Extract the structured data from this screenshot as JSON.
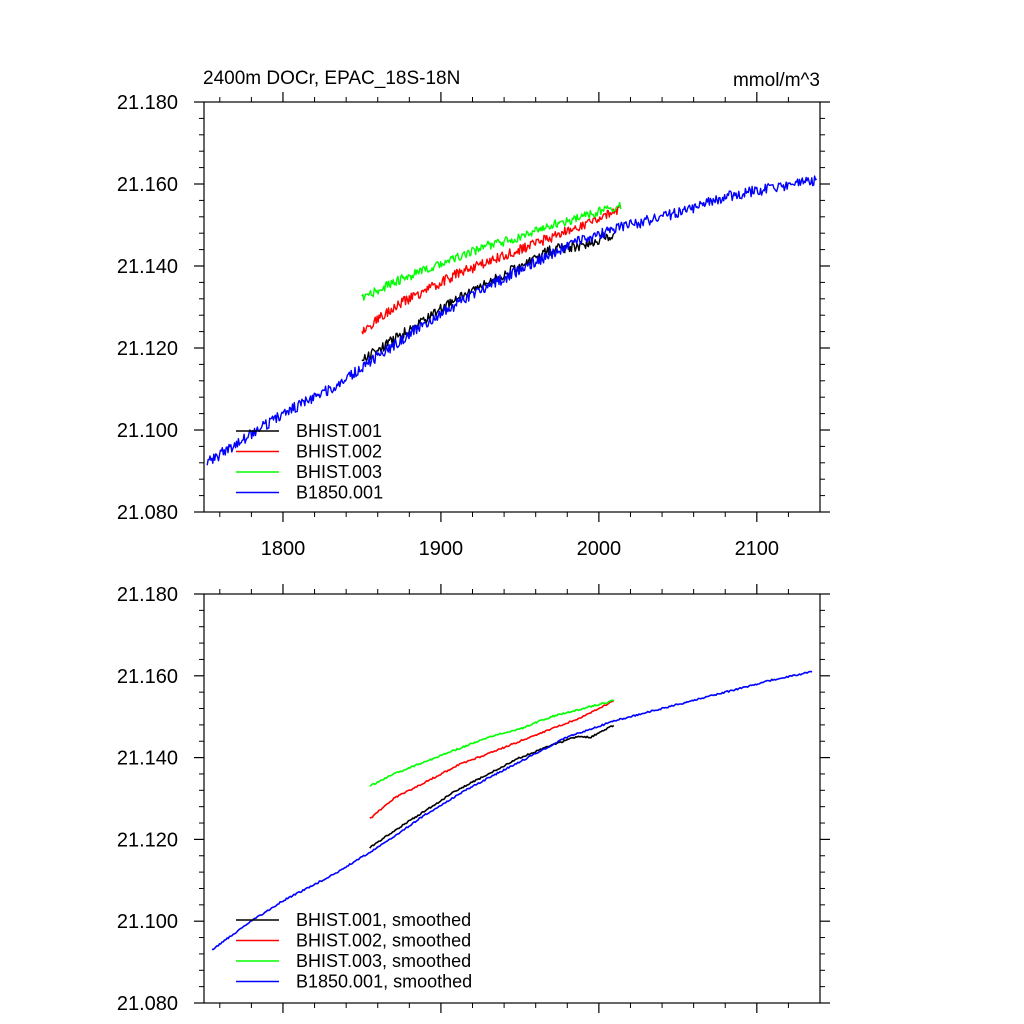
{
  "chart_data": [
    {
      "type": "line",
      "title": "2400m DOCr, EPAC_18S-18N",
      "units": "mmol/m^3",
      "xlim": [
        1750,
        2140
      ],
      "ylim": [
        21.08,
        21.18
      ],
      "xticks": [
        1800,
        1900,
        2000,
        2100
      ],
      "xticklabels": [
        "1800",
        "1900",
        "2000",
        "2100"
      ],
      "yticks": [
        21.08,
        21.1,
        21.12,
        21.14,
        21.16,
        21.18
      ],
      "yticklabels": [
        "21.080",
        "21.100",
        "21.120",
        "21.140",
        "21.160",
        "21.180"
      ],
      "legend_position": "bottom-left",
      "series": [
        {
          "name": "BHIST.001",
          "color": "#000000",
          "noise": 0.0012,
          "x": [
            1850,
            1870,
            1890,
            1910,
            1930,
            1950,
            1970,
            1990,
            2010
          ],
          "y": [
            21.117,
            21.122,
            21.127,
            21.132,
            21.136,
            21.14,
            21.144,
            21.145,
            21.148
          ]
        },
        {
          "name": "BHIST.002",
          "color": "#ff0000",
          "noise": 0.0012,
          "x": [
            1850,
            1870,
            1890,
            1910,
            1930,
            1950,
            1970,
            1990,
            2014
          ],
          "y": [
            21.124,
            21.13,
            21.134,
            21.138,
            21.141,
            21.144,
            21.147,
            21.15,
            21.154
          ]
        },
        {
          "name": "BHIST.003",
          "color": "#00ff00",
          "noise": 0.0011,
          "x": [
            1850,
            1870,
            1890,
            1910,
            1930,
            1950,
            1970,
            1990,
            2014
          ],
          "y": [
            21.132,
            21.136,
            21.139,
            21.142,
            21.145,
            21.147,
            21.15,
            21.152,
            21.155
          ]
        },
        {
          "name": "B1850.001",
          "color": "#0000ff",
          "noise": 0.0013,
          "x": [
            1752,
            1780,
            1800,
            1830,
            1860,
            1890,
            1920,
            1950,
            1980,
            2010,
            2030,
            2060,
            2080,
            2110,
            2138
          ],
          "y": [
            21.092,
            21.099,
            21.104,
            21.11,
            21.118,
            21.126,
            21.133,
            21.139,
            21.145,
            21.149,
            21.151,
            21.154,
            21.157,
            21.159,
            21.161
          ]
        }
      ]
    },
    {
      "type": "line",
      "xlim": [
        1750,
        2140
      ],
      "ylim": [
        21.08,
        21.18
      ],
      "xticks": [
        1800,
        1900,
        2000,
        2100
      ],
      "yticks": [
        21.08,
        21.1,
        21.12,
        21.14,
        21.16,
        21.18
      ],
      "yticklabels": [
        "21.080",
        "21.100",
        "21.120",
        "21.140",
        "21.160",
        "21.180"
      ],
      "legend_position": "bottom-left",
      "series": [
        {
          "name": "BHIST.001, smoothed",
          "color": "#000000",
          "noise": 0.0002,
          "x": [
            1855,
            1870,
            1890,
            1910,
            1930,
            1950,
            1970,
            1985,
            1995,
            2010
          ],
          "y": [
            21.118,
            21.122,
            21.127,
            21.132,
            21.136,
            21.14,
            21.143,
            21.145,
            21.145,
            21.148
          ]
        },
        {
          "name": "BHIST.002, smoothed",
          "color": "#ff0000",
          "noise": 0.0002,
          "x": [
            1855,
            1870,
            1890,
            1910,
            1930,
            1950,
            1970,
            1990,
            2010
          ],
          "y": [
            21.125,
            21.13,
            21.134,
            21.138,
            21.141,
            21.144,
            21.147,
            21.15,
            21.154
          ]
        },
        {
          "name": "BHIST.003, smoothed",
          "color": "#00ff00",
          "noise": 0.0002,
          "x": [
            1855,
            1870,
            1890,
            1910,
            1930,
            1950,
            1970,
            1990,
            2010
          ],
          "y": [
            21.133,
            21.136,
            21.139,
            21.142,
            21.145,
            21.147,
            21.15,
            21.152,
            21.154
          ]
        },
        {
          "name": "B1850.001, smoothed",
          "color": "#0000ff",
          "noise": 0.0002,
          "x": [
            1755,
            1780,
            1800,
            1830,
            1860,
            1890,
            1920,
            1950,
            1980,
            2010,
            2030,
            2060,
            2080,
            2110,
            2135
          ],
          "y": [
            21.093,
            21.1,
            21.105,
            21.111,
            21.118,
            21.126,
            21.133,
            21.139,
            21.145,
            21.149,
            21.151,
            21.154,
            21.156,
            21.159,
            21.161
          ]
        }
      ]
    }
  ]
}
